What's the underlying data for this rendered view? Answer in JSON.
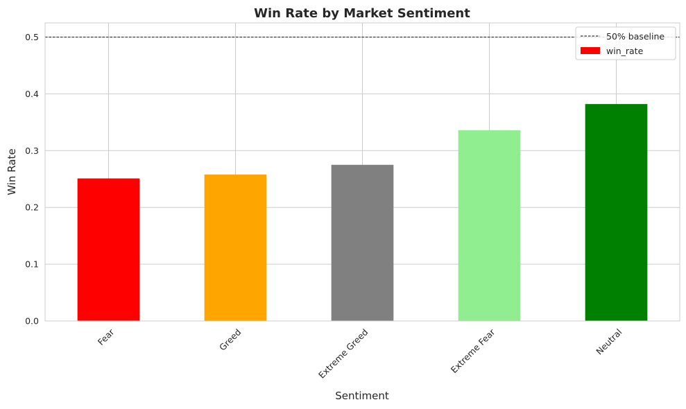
{
  "chart_data": {
    "type": "bar",
    "title": "Win Rate by Market Sentiment",
    "xlabel": "Sentiment",
    "ylabel": "Win Rate",
    "categories": [
      "Fear",
      "Greed",
      "Extreme Greed",
      "Extreme Fear",
      "Neutral"
    ],
    "values": [
      0.251,
      0.258,
      0.275,
      0.336,
      0.382
    ],
    "colors": [
      "#ff0000",
      "#ffa500",
      "#808080",
      "#90ee90",
      "#008000"
    ],
    "ylim": [
      0,
      0.525
    ],
    "yticks": [
      "0.0",
      "0.1",
      "0.2",
      "0.3",
      "0.4",
      "0.5"
    ],
    "ytick_values": [
      0,
      0.1,
      0.2,
      0.3,
      0.4,
      0.5
    ],
    "grid": true,
    "baseline": {
      "value": 0.5,
      "label": "50% baseline",
      "style": "dashed",
      "color": "#000000"
    },
    "legend": {
      "position": "top-right",
      "entries": [
        {
          "label": "50% baseline",
          "kind": "dashed-line",
          "color": "#000000"
        },
        {
          "label": "win_rate",
          "kind": "patch",
          "color": "#ff0000"
        }
      ]
    }
  }
}
